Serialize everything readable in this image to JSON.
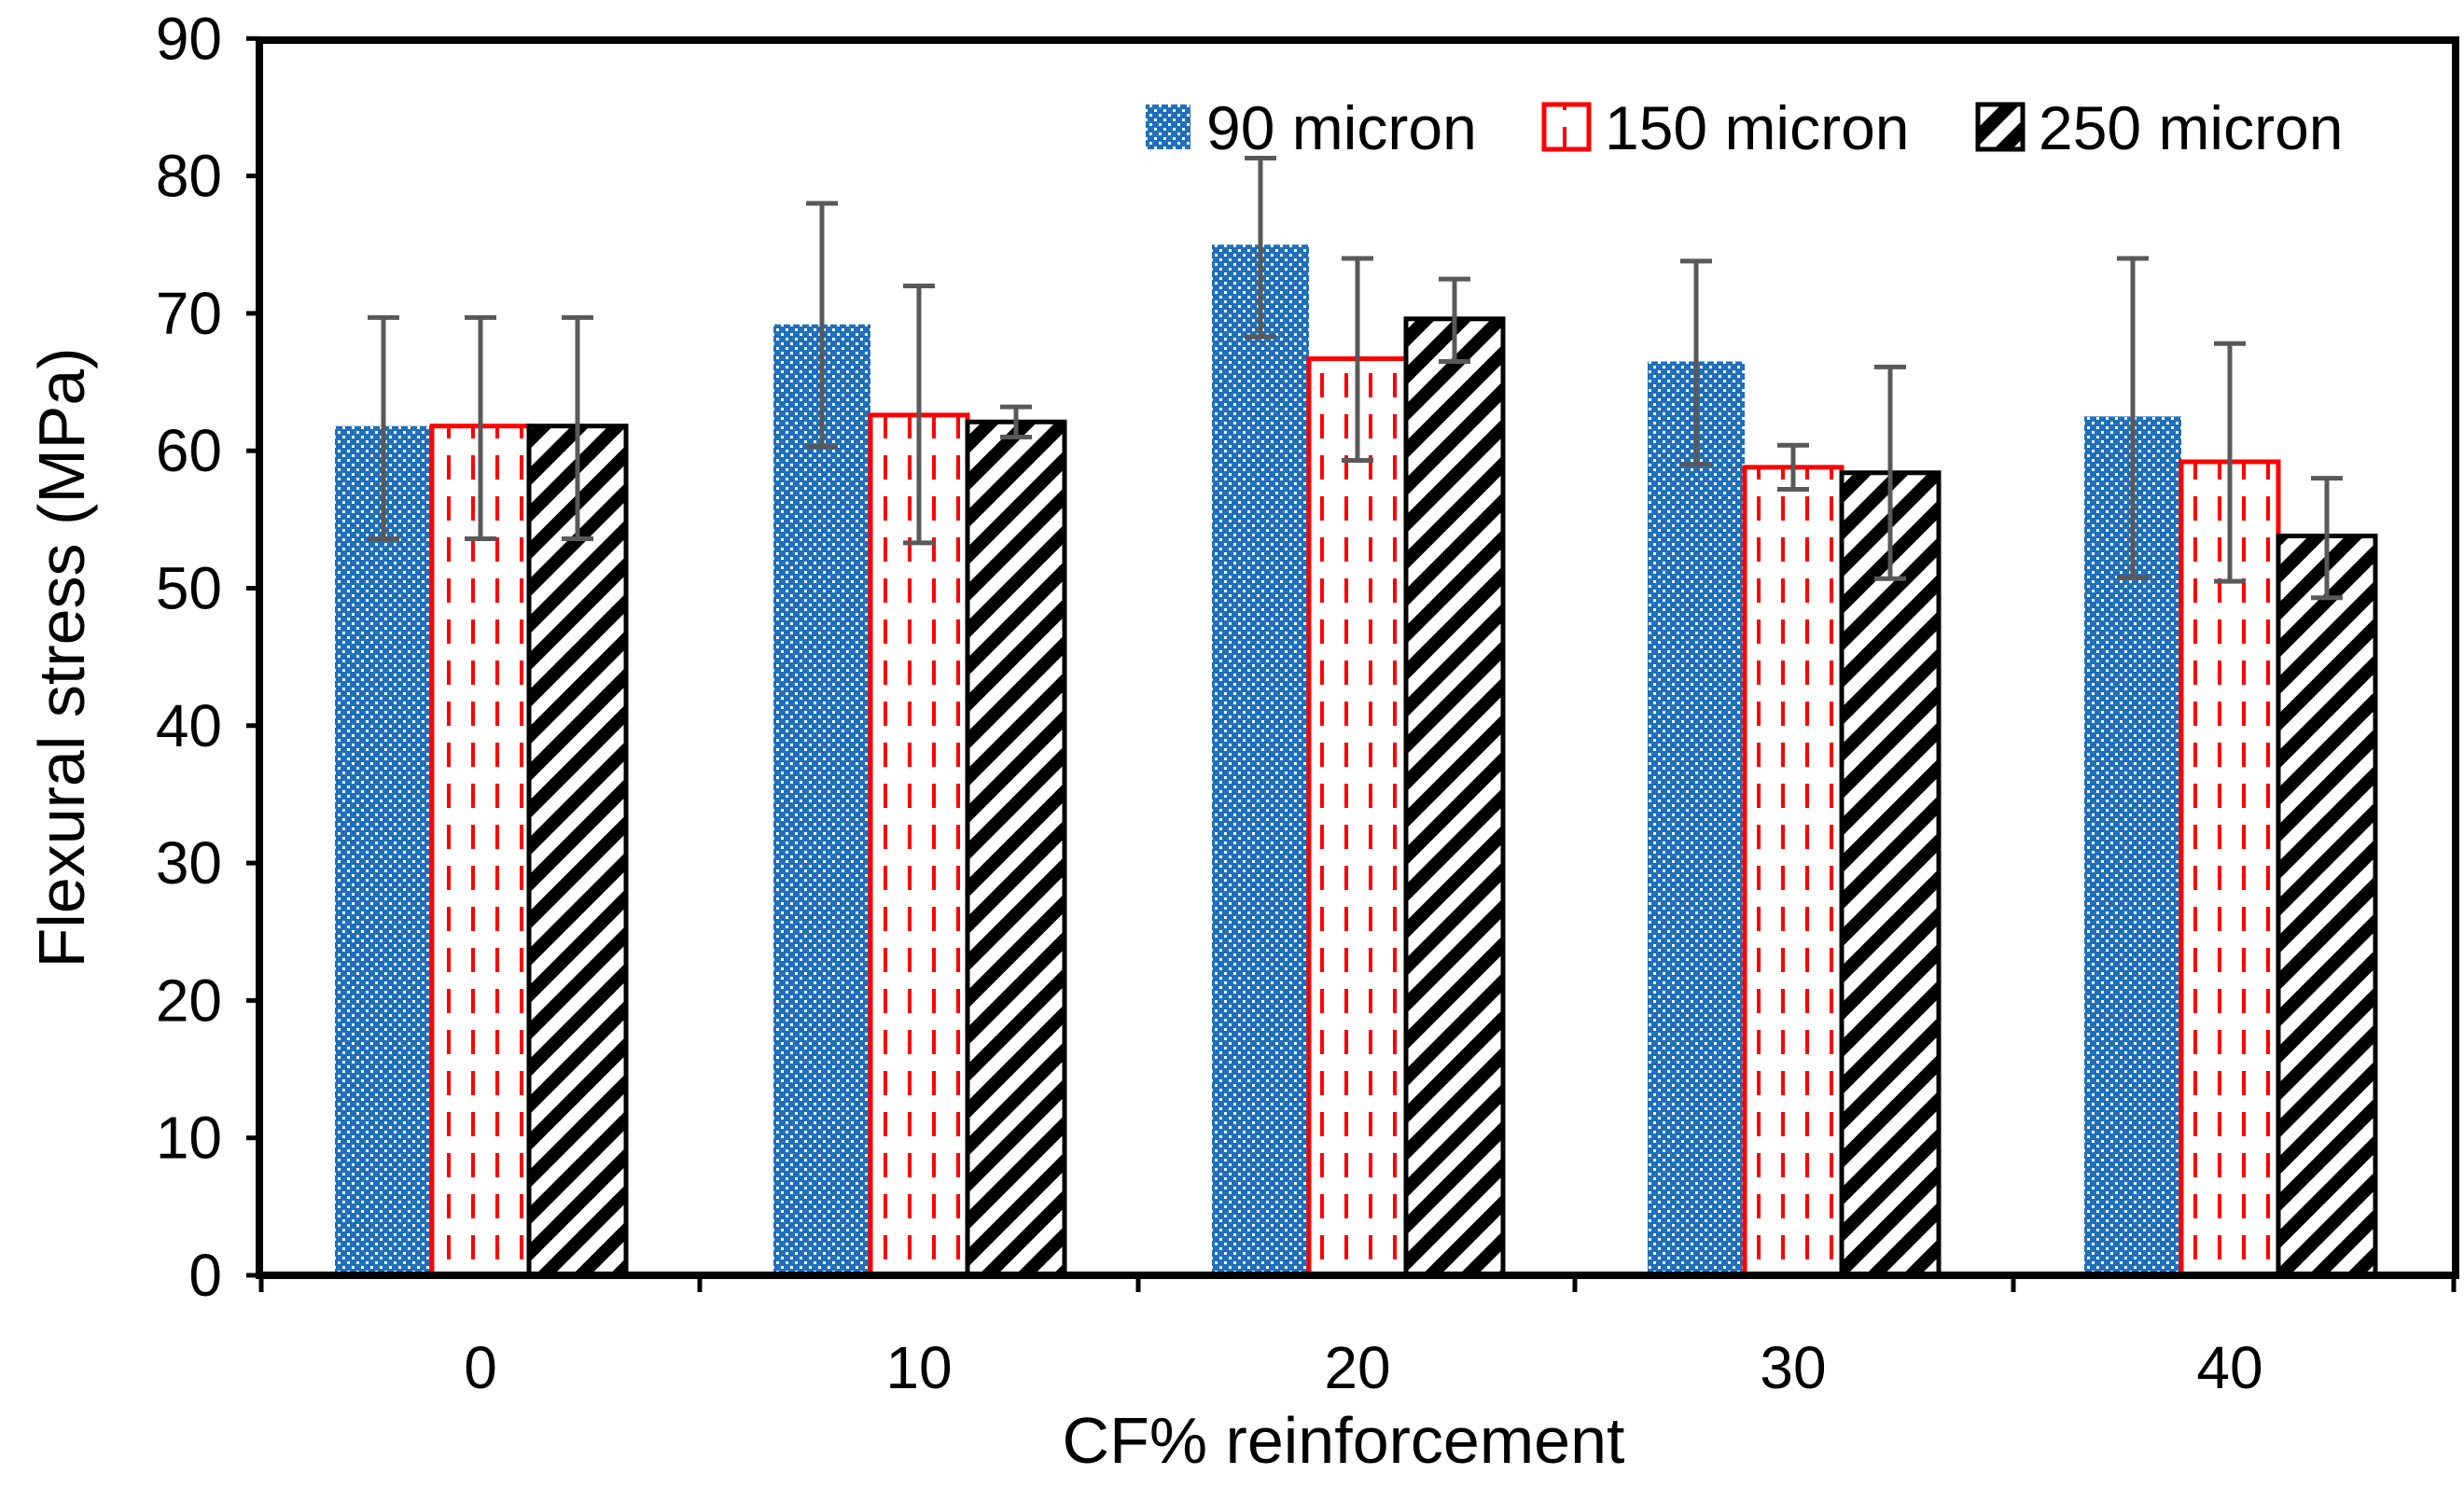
{
  "chart_data": {
    "type": "bar",
    "title": "",
    "xlabel": "CF% reinforcement",
    "ylabel": "Flexural stress (MPa)",
    "ylim": [
      0,
      90
    ],
    "yticks": [
      0,
      10,
      20,
      30,
      40,
      50,
      60,
      70,
      80,
      90
    ],
    "categories": [
      "0",
      "10",
      "20",
      "30",
      "40"
    ],
    "legend_position": "top-right",
    "series": [
      {
        "name": "90 micron",
        "values": [
          61.8,
          69.2,
          75.0,
          66.5,
          62.5
        ],
        "error_high": [
          69.7,
          78.0,
          81.3,
          73.8,
          74.0
        ],
        "error_low": [
          53.6,
          60.3,
          68.3,
          59.0,
          50.8
        ],
        "color": "#1f6fba",
        "pattern": "dotted"
      },
      {
        "name": "150 micron",
        "values": [
          61.8,
          62.6,
          66.7,
          58.8,
          59.2
        ],
        "error_high": [
          69.7,
          72.0,
          74.0,
          60.4,
          67.8
        ],
        "error_low": [
          53.6,
          53.3,
          59.3,
          57.2,
          50.5
        ],
        "color": "#ff0000",
        "pattern": "dashed-vertical"
      },
      {
        "name": "250 micron",
        "values": [
          61.8,
          62.1,
          69.6,
          58.4,
          53.8
        ],
        "error_high": [
          69.7,
          63.2,
          72.5,
          66.1,
          58.0
        ],
        "error_low": [
          53.6,
          61.0,
          66.5,
          50.7,
          49.3
        ],
        "color": "#000000",
        "pattern": "diagonal-stripes"
      }
    ]
  }
}
